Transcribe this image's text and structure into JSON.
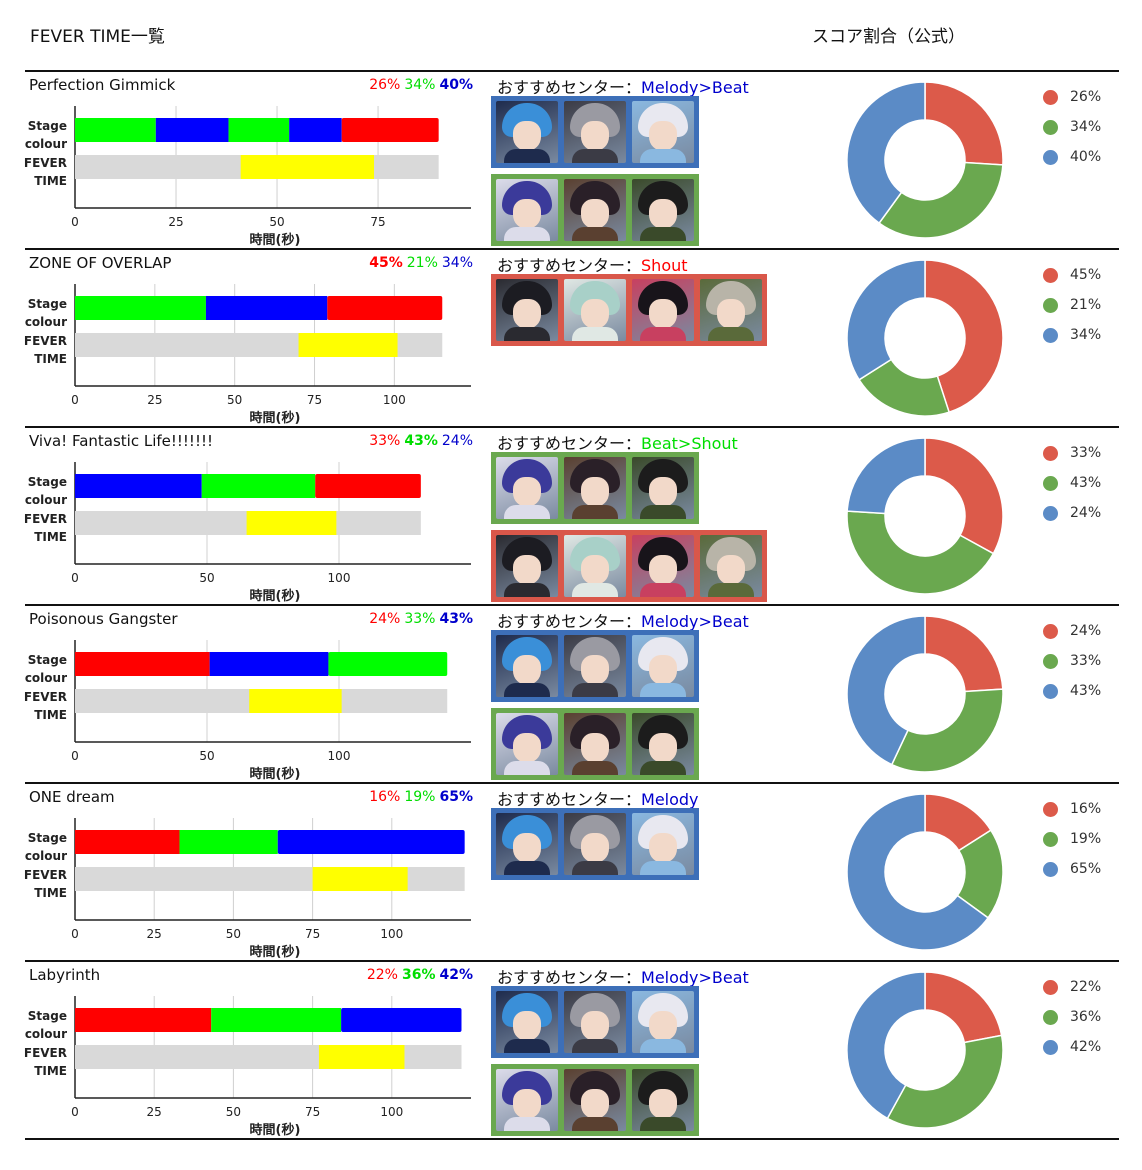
{
  "page": {
    "title": "FEVER TIME一覧",
    "donut_heading": "スコア割合（公式）",
    "rec_prefix": "おすすめセンター："
  },
  "colors": {
    "red": "#ff0000",
    "green": "#00ff00",
    "blue": "#0000ff",
    "yellow": "#ffff00",
    "grey": "#d9d9d9",
    "donut_red": "#dc5a4a",
    "donut_green": "#6aa84f",
    "donut_blue": "#5b8bc6",
    "frame_blue": "#3d6fb8",
    "frame_green": "#6aa84f",
    "frame_red": "#d9574a",
    "text_red": "#ff0000",
    "text_green": "#00dd00",
    "text_blue": "#0000cc"
  },
  "chart_data": [
    {
      "type": "bar",
      "title": "Perfection Gimmick",
      "categories": [
        "Stage colour",
        "FEVER TIME"
      ],
      "xlabel": "時間(秒)",
      "xlim": [
        0,
        98
      ],
      "xticks": [
        0,
        25,
        50,
        75
      ],
      "stage_segments": [
        {
          "color": "green",
          "start": 0,
          "end": 20
        },
        {
          "color": "blue",
          "start": 20,
          "end": 38
        },
        {
          "color": "green",
          "start": 38,
          "end": 53
        },
        {
          "color": "blue",
          "start": 53,
          "end": 66
        },
        {
          "color": "red",
          "start": 66,
          "end": 90
        }
      ],
      "fever_segments": [
        {
          "color": "grey",
          "start": 0,
          "end": 90
        },
        {
          "color": "yellow",
          "start": 41,
          "end": 74
        }
      ],
      "percentages": [
        {
          "label": "26%",
          "color": "text_red",
          "bold": false
        },
        {
          "label": "34%",
          "color": "text_green",
          "bold": false
        },
        {
          "label": "40%",
          "color": "text_blue",
          "bold": true
        }
      ],
      "recommend": {
        "text": "Melody>Beat",
        "color": "text_blue"
      },
      "portrait_groups": [
        {
          "frame": "frame_blue",
          "portraits": [
            {
              "name": "center-blue-haired",
              "hair": "#3a8fd8",
              "body": "#1e2b4d"
            },
            {
              "name": "center-grey-haired",
              "hair": "#9a9aa2",
              "body": "#3b3b45"
            },
            {
              "name": "center-white-haired",
              "hair": "#e8e8f0",
              "body": "#8ab8e0"
            }
          ]
        },
        {
          "frame": "frame_green",
          "portraits": [
            {
              "name": "center-navy-haired",
              "hair": "#3b3a9a",
              "body": "#dcdcea"
            },
            {
              "name": "center-dark-haired",
              "hair": "#2a2028",
              "body": "#5a4030"
            },
            {
              "name": "center-black-haired",
              "hair": "#1c1c1c",
              "body": "#3a4a2a"
            }
          ]
        }
      ],
      "donut": [
        {
          "label": "26%",
          "value": 26,
          "color": "donut_red"
        },
        {
          "label": "34%",
          "value": 34,
          "color": "donut_green"
        },
        {
          "label": "40%",
          "value": 40,
          "color": "donut_blue"
        }
      ]
    },
    {
      "type": "bar",
      "title": "ZONE OF OVERLAP",
      "categories": [
        "Stage colour",
        "FEVER TIME"
      ],
      "xlabel": "時間(秒)",
      "xlim": [
        0,
        124
      ],
      "xticks": [
        0,
        25,
        50,
        75,
        100
      ],
      "stage_segments": [
        {
          "color": "green",
          "start": 0,
          "end": 41
        },
        {
          "color": "blue",
          "start": 41,
          "end": 79
        },
        {
          "color": "red",
          "start": 79,
          "end": 115
        }
      ],
      "fever_segments": [
        {
          "color": "grey",
          "start": 0,
          "end": 115
        },
        {
          "color": "yellow",
          "start": 70,
          "end": 101
        }
      ],
      "percentages": [
        {
          "label": "45%",
          "color": "text_red",
          "bold": true
        },
        {
          "label": "21%",
          "color": "text_green",
          "bold": false
        },
        {
          "label": "34%",
          "color": "text_blue",
          "bold": false
        }
      ],
      "recommend": {
        "text": "Shout",
        "color": "text_red"
      },
      "portrait_groups": [
        {
          "frame": "frame_red",
          "portraits": [
            {
              "name": "center-black-haired-a",
              "hair": "#1c1c22",
              "body": "#2a2a30"
            },
            {
              "name": "center-mint-haired",
              "hair": "#a8d0c8",
              "body": "#e0e8e4"
            },
            {
              "name": "center-black-haired-b",
              "hair": "#18141a",
              "body": "#c84060"
            },
            {
              "name": "center-silver-haired",
              "hair": "#b8b4a8",
              "body": "#5a6a3a"
            }
          ]
        }
      ],
      "donut": [
        {
          "label": "45%",
          "value": 45,
          "color": "donut_red"
        },
        {
          "label": "21%",
          "value": 21,
          "color": "donut_green"
        },
        {
          "label": "34%",
          "value": 34,
          "color": "donut_blue"
        }
      ]
    },
    {
      "type": "bar",
      "title": "Viva! Fantastic Life!!!!!!!",
      "categories": [
        "Stage colour",
        "FEVER TIME"
      ],
      "xlabel": "時間(秒)",
      "xlim": [
        0,
        150
      ],
      "xticks": [
        0,
        50,
        100
      ],
      "stage_segments": [
        {
          "color": "blue",
          "start": 0,
          "end": 48
        },
        {
          "color": "green",
          "start": 48,
          "end": 91
        },
        {
          "color": "red",
          "start": 91,
          "end": 131
        }
      ],
      "fever_segments": [
        {
          "color": "grey",
          "start": 0,
          "end": 131
        },
        {
          "color": "yellow",
          "start": 65,
          "end": 99
        }
      ],
      "percentages": [
        {
          "label": "33%",
          "color": "text_red",
          "bold": false
        },
        {
          "label": "43%",
          "color": "text_green",
          "bold": true
        },
        {
          "label": "24%",
          "color": "text_blue",
          "bold": false
        }
      ],
      "recommend": {
        "text": "Beat>Shout",
        "color": "text_green"
      },
      "portrait_groups": [
        {
          "frame": "frame_green",
          "portraits": [
            {
              "name": "center-navy-haired",
              "hair": "#3b3a9a",
              "body": "#dcdcea"
            },
            {
              "name": "center-dark-haired",
              "hair": "#2a2028",
              "body": "#5a4030"
            },
            {
              "name": "center-black-haired",
              "hair": "#1c1c1c",
              "body": "#3a4a2a"
            }
          ]
        },
        {
          "frame": "frame_red",
          "portraits": [
            {
              "name": "center-black-haired-a",
              "hair": "#1c1c22",
              "body": "#2a2a30"
            },
            {
              "name": "center-mint-haired",
              "hair": "#a8d0c8",
              "body": "#e0e8e4"
            },
            {
              "name": "center-black-haired-b",
              "hair": "#18141a",
              "body": "#c84060"
            },
            {
              "name": "center-silver-haired",
              "hair": "#b8b4a8",
              "body": "#5a6a3a"
            }
          ]
        }
      ],
      "donut": [
        {
          "label": "33%",
          "value": 33,
          "color": "donut_red"
        },
        {
          "label": "43%",
          "value": 43,
          "color": "donut_green"
        },
        {
          "label": "24%",
          "value": 24,
          "color": "donut_blue"
        }
      ]
    },
    {
      "type": "bar",
      "title": "Poisonous Gangster",
      "categories": [
        "Stage colour",
        "FEVER TIME"
      ],
      "xlabel": "時間(秒)",
      "xlim": [
        0,
        150
      ],
      "xticks": [
        0,
        50,
        100
      ],
      "stage_segments": [
        {
          "color": "red",
          "start": 0,
          "end": 51
        },
        {
          "color": "blue",
          "start": 51,
          "end": 96
        },
        {
          "color": "green",
          "start": 96,
          "end": 141
        }
      ],
      "fever_segments": [
        {
          "color": "grey",
          "start": 0,
          "end": 141
        },
        {
          "color": "yellow",
          "start": 66,
          "end": 101
        }
      ],
      "percentages": [
        {
          "label": "24%",
          "color": "text_red",
          "bold": false
        },
        {
          "label": "33%",
          "color": "text_green",
          "bold": false
        },
        {
          "label": "43%",
          "color": "text_blue",
          "bold": true
        }
      ],
      "recommend": {
        "text": "Melody>Beat",
        "color": "text_blue"
      },
      "portrait_groups": [
        {
          "frame": "frame_blue",
          "portraits": [
            {
              "name": "center-blue-haired",
              "hair": "#3a8fd8",
              "body": "#1e2b4d"
            },
            {
              "name": "center-grey-haired",
              "hair": "#9a9aa2",
              "body": "#3b3b45"
            },
            {
              "name": "center-white-haired",
              "hair": "#e8e8f0",
              "body": "#8ab8e0"
            }
          ]
        },
        {
          "frame": "frame_green",
          "portraits": [
            {
              "name": "center-navy-haired",
              "hair": "#3b3a9a",
              "body": "#dcdcea"
            },
            {
              "name": "center-dark-haired",
              "hair": "#2a2028",
              "body": "#5a4030"
            },
            {
              "name": "center-black-haired",
              "hair": "#1c1c1c",
              "body": "#3a4a2a"
            }
          ]
        }
      ],
      "donut": [
        {
          "label": "24%",
          "value": 24,
          "color": "donut_red"
        },
        {
          "label": "33%",
          "value": 33,
          "color": "donut_green"
        },
        {
          "label": "43%",
          "value": 43,
          "color": "donut_blue"
        }
      ]
    },
    {
      "type": "bar",
      "title": "ONE dream",
      "categories": [
        "Stage colour",
        "FEVER TIME"
      ],
      "xlabel": "時間(秒)",
      "xlim": [
        0,
        125
      ],
      "xticks": [
        0,
        25,
        50,
        75,
        100
      ],
      "stage_segments": [
        {
          "color": "red",
          "start": 0,
          "end": 33
        },
        {
          "color": "green",
          "start": 33,
          "end": 64
        },
        {
          "color": "blue",
          "start": 64,
          "end": 123
        }
      ],
      "fever_segments": [
        {
          "color": "grey",
          "start": 0,
          "end": 123
        },
        {
          "color": "yellow",
          "start": 75,
          "end": 105
        }
      ],
      "percentages": [
        {
          "label": "16%",
          "color": "text_red",
          "bold": false
        },
        {
          "label": "19%",
          "color": "text_green",
          "bold": false
        },
        {
          "label": "65%",
          "color": "text_blue",
          "bold": true
        }
      ],
      "recommend": {
        "text": "Melody",
        "color": "text_blue"
      },
      "portrait_groups": [
        {
          "frame": "frame_blue",
          "portraits": [
            {
              "name": "center-blue-haired",
              "hair": "#3a8fd8",
              "body": "#1e2b4d"
            },
            {
              "name": "center-grey-haired",
              "hair": "#9a9aa2",
              "body": "#3b3b45"
            },
            {
              "name": "center-white-haired",
              "hair": "#e8e8f0",
              "body": "#8ab8e0"
            }
          ]
        }
      ],
      "donut": [
        {
          "label": "16%",
          "value": 16,
          "color": "donut_red"
        },
        {
          "label": "19%",
          "value": 19,
          "color": "donut_green"
        },
        {
          "label": "65%",
          "value": 65,
          "color": "donut_blue"
        }
      ]
    },
    {
      "type": "bar",
      "title": "Labyrinth",
      "categories": [
        "Stage colour",
        "FEVER TIME"
      ],
      "xlabel": "時間(秒)",
      "xlim": [
        0,
        125
      ],
      "xticks": [
        0,
        25,
        50,
        75,
        100
      ],
      "stage_segments": [
        {
          "color": "red",
          "start": 0,
          "end": 43
        },
        {
          "color": "green",
          "start": 43,
          "end": 84
        },
        {
          "color": "blue",
          "start": 84,
          "end": 122
        }
      ],
      "fever_segments": [
        {
          "color": "grey",
          "start": 0,
          "end": 122
        },
        {
          "color": "yellow",
          "start": 77,
          "end": 104
        }
      ],
      "percentages": [
        {
          "label": "22%",
          "color": "text_red",
          "bold": false
        },
        {
          "label": "36%",
          "color": "text_green",
          "bold": true
        },
        {
          "label": "42%",
          "color": "text_blue",
          "bold": true
        }
      ],
      "recommend": {
        "text": "Melody>Beat",
        "color": "text_blue"
      },
      "portrait_groups": [
        {
          "frame": "frame_blue",
          "portraits": [
            {
              "name": "center-blue-haired",
              "hair": "#3a8fd8",
              "body": "#1e2b4d"
            },
            {
              "name": "center-grey-haired",
              "hair": "#9a9aa2",
              "body": "#3b3b45"
            },
            {
              "name": "center-white-haired",
              "hair": "#e8e8f0",
              "body": "#8ab8e0"
            }
          ]
        },
        {
          "frame": "frame_green",
          "portraits": [
            {
              "name": "center-navy-haired",
              "hair": "#3b3a9a",
              "body": "#dcdcea"
            },
            {
              "name": "center-dark-haired",
              "hair": "#2a2028",
              "body": "#5a4030"
            },
            {
              "name": "center-black-haired",
              "hair": "#1c1c1c",
              "body": "#3a4a2a"
            }
          ]
        }
      ],
      "donut": [
        {
          "label": "22%",
          "value": 22,
          "color": "donut_red"
        },
        {
          "label": "36%",
          "value": 36,
          "color": "donut_green"
        },
        {
          "label": "42%",
          "value": 42,
          "color": "donut_blue"
        }
      ]
    }
  ]
}
